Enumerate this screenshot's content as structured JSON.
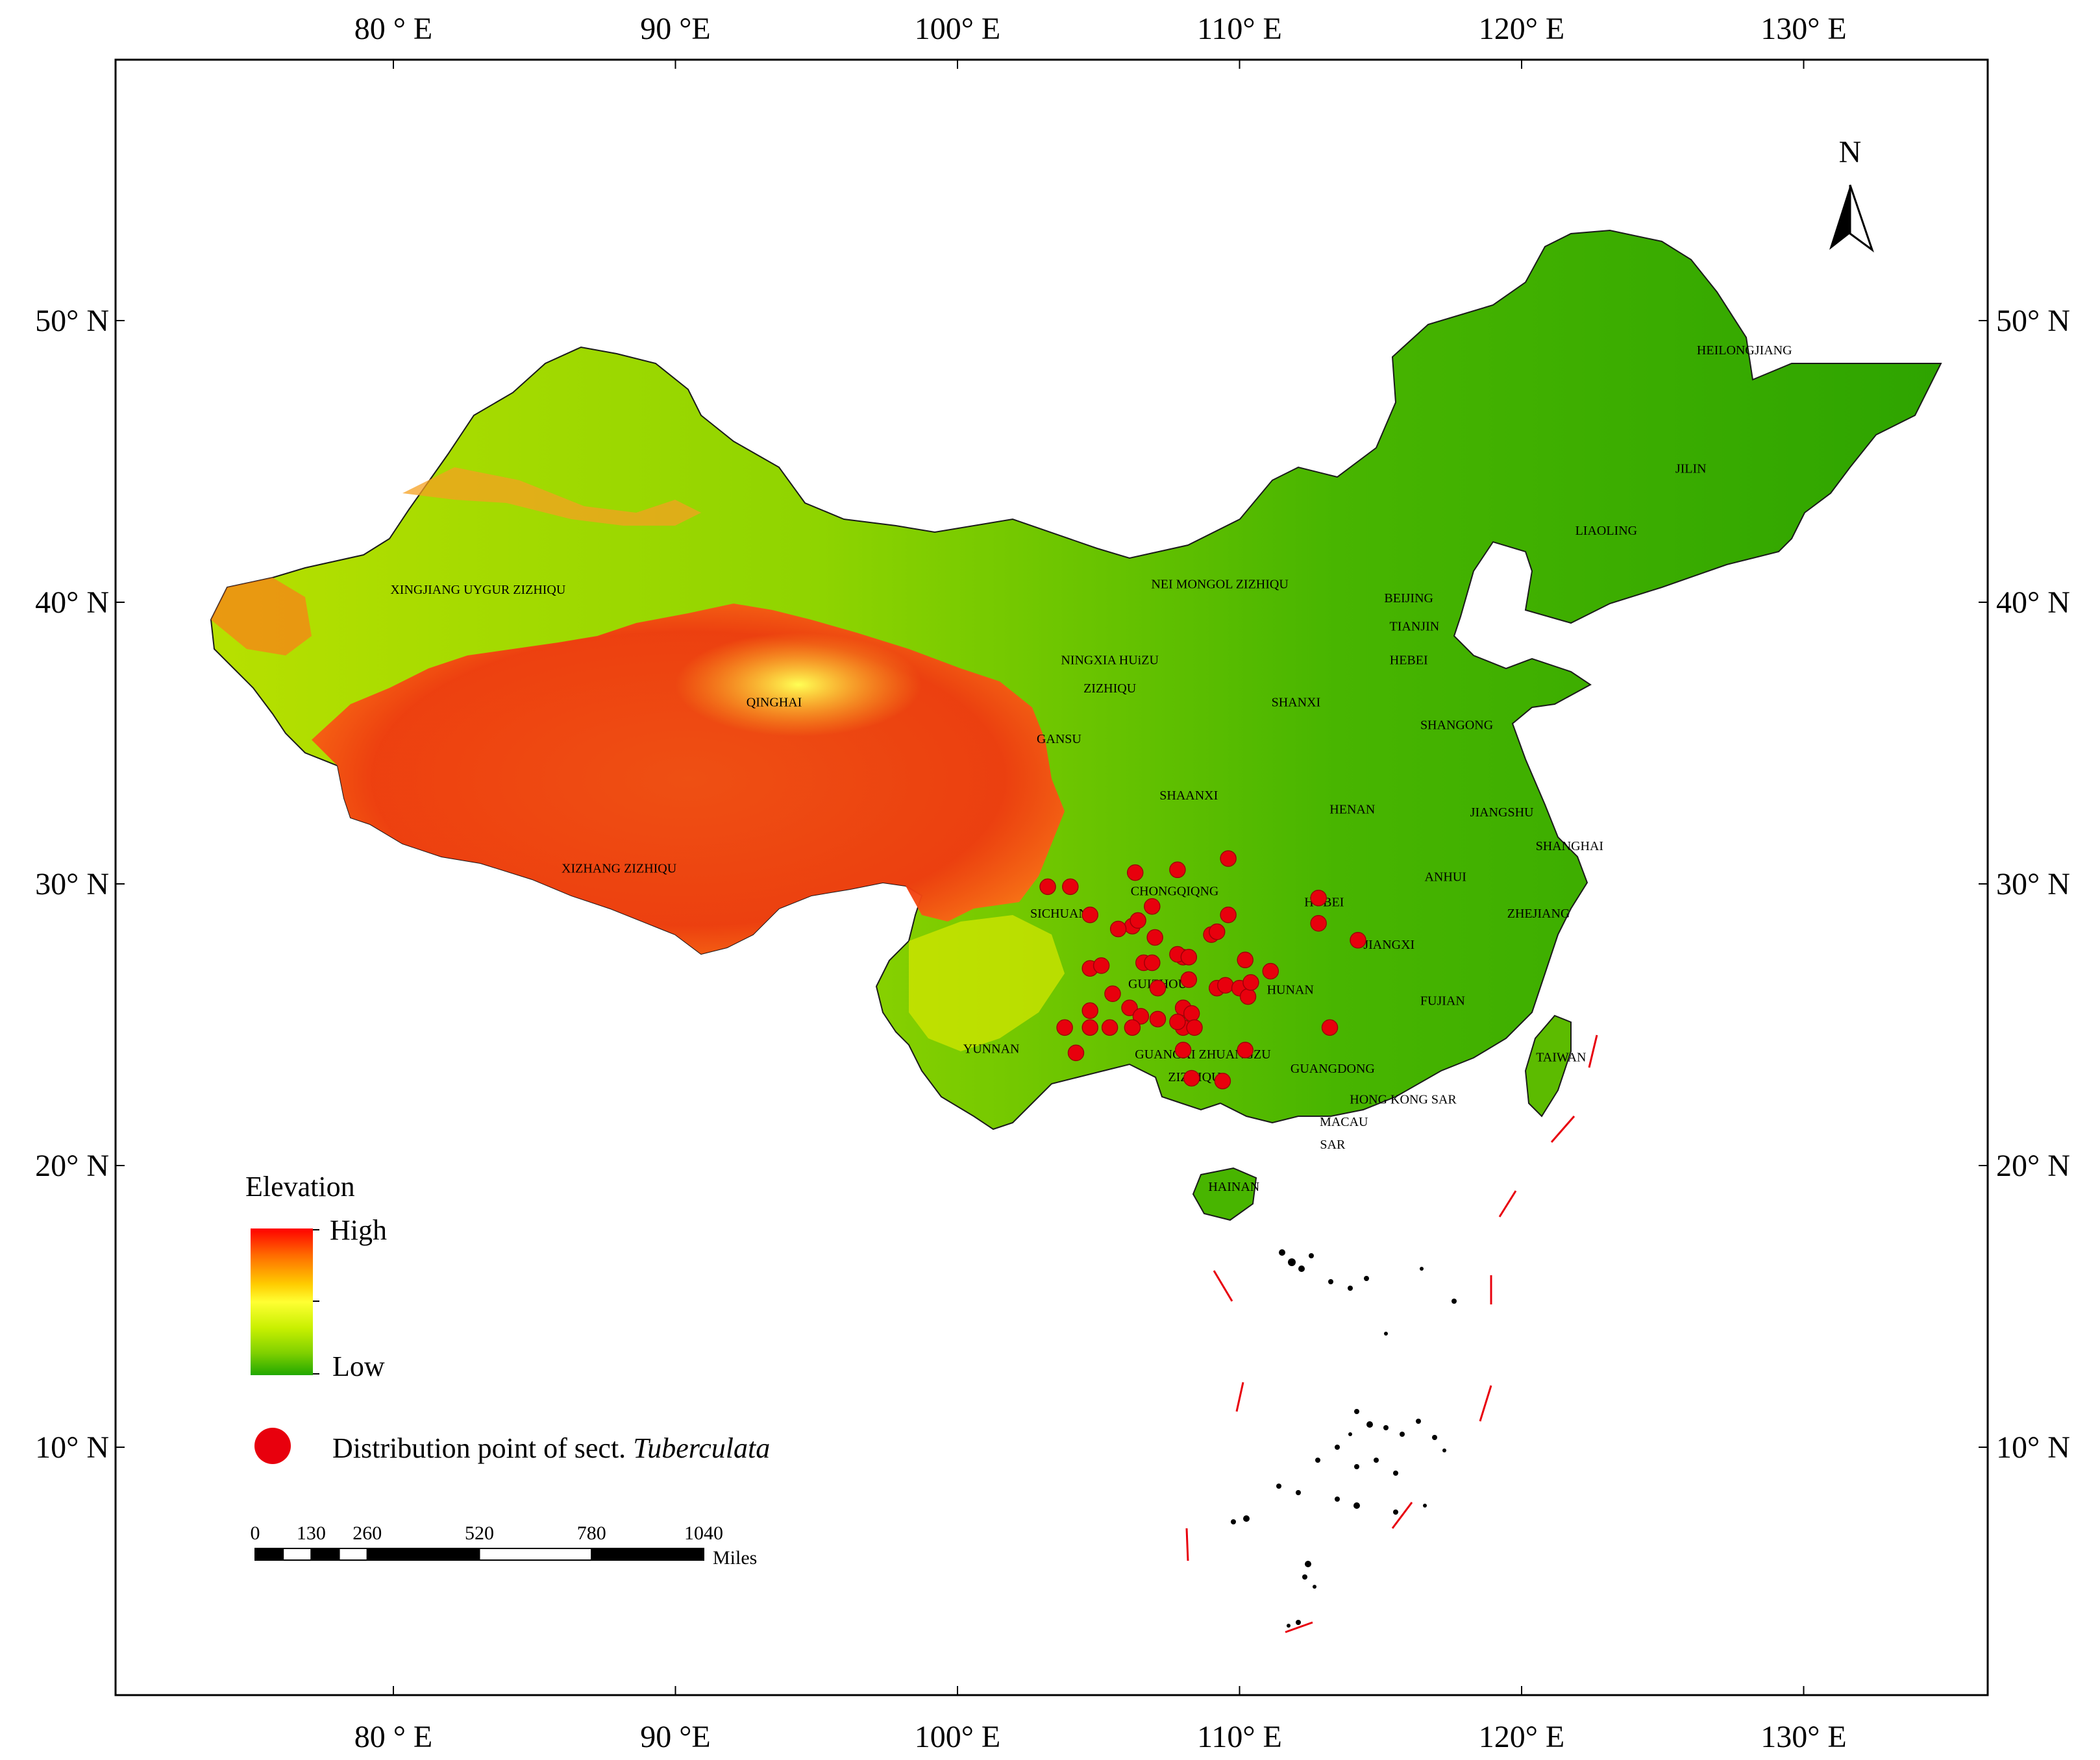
{
  "graticule": {
    "lon_labels": [
      "80 ° E",
      "90 °E",
      "100° E",
      "110° E",
      "120° E",
      "130° E"
    ],
    "lon_values": [
      80,
      90,
      100,
      110,
      120,
      130
    ],
    "lat_labels": [
      "50° N",
      "40° N",
      "30° N",
      "20° N",
      "10° N"
    ],
    "lat_values": [
      50,
      40,
      30,
      20,
      10
    ]
  },
  "north_arrow": {
    "label": "N",
    "icon": "north-arrow-icon"
  },
  "provinces": [
    {
      "name": "XINGJIANG UYGUR ZIZHIQU",
      "lon": 83.0,
      "lat": 40.3
    },
    {
      "name": "NEI MONGOL ZIZHIQU",
      "lon": 109.3,
      "lat": 40.5
    },
    {
      "name": "HEILONGJIANG",
      "lon": 127.9,
      "lat": 48.8
    },
    {
      "name": "JILIN",
      "lon": 126.0,
      "lat": 44.6
    },
    {
      "name": "LIAOLING",
      "lon": 123.0,
      "lat": 42.4
    },
    {
      "name": "BEIJING",
      "lon": 116.0,
      "lat": 40.0
    },
    {
      "name": "TIANJIN",
      "lon": 116.2,
      "lat": 39.0
    },
    {
      "name": "HEBEI",
      "lon": 116.0,
      "lat": 37.8
    },
    {
      "name": "NINGXIA HUiZU",
      "lon": 105.4,
      "lat": 37.8
    },
    {
      "name": "ZIZHIQU",
      "lon": 105.4,
      "lat": 36.8
    },
    {
      "name": "SHANXI",
      "lon": 112.0,
      "lat": 36.3
    },
    {
      "name": "QINGHAI",
      "lon": 93.5,
      "lat": 36.3
    },
    {
      "name": "SHANGONG",
      "lon": 117.7,
      "lat": 35.5
    },
    {
      "name": "GANSU",
      "lon": 103.6,
      "lat": 35.0
    },
    {
      "name": "SHAANXI",
      "lon": 108.2,
      "lat": 33.0
    },
    {
      "name": "HENAN",
      "lon": 114.0,
      "lat": 32.5
    },
    {
      "name": "JIANGSHU",
      "lon": 119.3,
      "lat": 32.4
    },
    {
      "name": "SHANGHAI",
      "lon": 121.7,
      "lat": 31.2
    },
    {
      "name": "XIZHANG ZIZHIQU",
      "lon": 88.0,
      "lat": 30.4
    },
    {
      "name": "CHONGQIQNG",
      "lon": 107.7,
      "lat": 29.6
    },
    {
      "name": "ANHUI",
      "lon": 117.3,
      "lat": 30.1
    },
    {
      "name": "HUBEI",
      "lon": 113.0,
      "lat": 29.2
    },
    {
      "name": "SICHUAN",
      "lon": 103.6,
      "lat": 28.8
    },
    {
      "name": "ZHEJIANG",
      "lon": 120.6,
      "lat": 28.8
    },
    {
      "name": "JIANGXI",
      "lon": 115.3,
      "lat": 27.7
    },
    {
      "name": "GUIZHOU",
      "lon": 107.1,
      "lat": 26.3
    },
    {
      "name": "HUNAN",
      "lon": 111.8,
      "lat": 26.1
    },
    {
      "name": "FUJIAN",
      "lon": 117.2,
      "lat": 25.7
    },
    {
      "name": "YUNNAN",
      "lon": 101.2,
      "lat": 24.0
    },
    {
      "name": "GUANGXI ZHUANGZU",
      "lon": 108.7,
      "lat": 23.8
    },
    {
      "name": "ZIZHIQU",
      "lon": 108.4,
      "lat": 23.0
    },
    {
      "name": "TAIWAN",
      "lon": 121.4,
      "lat": 23.7
    },
    {
      "name": "GUANGDONG",
      "lon": 113.3,
      "lat": 23.3
    },
    {
      "name": "HONG KONG SAR",
      "lon": 115.8,
      "lat": 22.2
    },
    {
      "name": "MACAU",
      "lon": 113.7,
      "lat": 21.4
    },
    {
      "name": "SAR",
      "lon": 113.3,
      "lat": 20.6
    },
    {
      "name": "HAINAN",
      "lon": 109.8,
      "lat": 19.1
    }
  ],
  "distribution_points": [
    [
      103.2,
      29.9
    ],
    [
      104.0,
      29.9
    ],
    [
      106.3,
      30.4
    ],
    [
      107.8,
      30.5
    ],
    [
      109.6,
      30.9
    ],
    [
      104.7,
      28.9
    ],
    [
      106.9,
      29.2
    ],
    [
      106.2,
      28.5
    ],
    [
      105.7,
      28.4
    ],
    [
      106.4,
      28.7
    ],
    [
      107.0,
      28.1
    ],
    [
      108.0,
      27.4
    ],
    [
      109.0,
      28.2
    ],
    [
      109.2,
      28.3
    ],
    [
      109.6,
      28.9
    ],
    [
      112.8,
      29.5
    ],
    [
      112.8,
      28.6
    ],
    [
      114.2,
      28.0
    ],
    [
      104.7,
      27.0
    ],
    [
      105.1,
      27.1
    ],
    [
      106.6,
      27.2
    ],
    [
      106.9,
      27.2
    ],
    [
      107.8,
      27.5
    ],
    [
      108.2,
      27.4
    ],
    [
      110.2,
      27.3
    ],
    [
      111.1,
      26.9
    ],
    [
      105.5,
      26.1
    ],
    [
      107.1,
      26.3
    ],
    [
      108.2,
      26.6
    ],
    [
      109.2,
      26.3
    ],
    [
      109.5,
      26.4
    ],
    [
      110.0,
      26.3
    ],
    [
      110.3,
      26.0
    ],
    [
      110.4,
      26.5
    ],
    [
      104.7,
      25.5
    ],
    [
      106.1,
      25.6
    ],
    [
      106.5,
      25.3
    ],
    [
      107.1,
      25.2
    ],
    [
      108.0,
      25.6
    ],
    [
      108.3,
      25.4
    ],
    [
      108.0,
      24.9
    ],
    [
      108.4,
      24.9
    ],
    [
      103.8,
      24.9
    ],
    [
      104.7,
      24.9
    ],
    [
      105.4,
      24.9
    ],
    [
      106.2,
      24.9
    ],
    [
      107.8,
      25.1
    ],
    [
      113.2,
      24.9
    ],
    [
      104.2,
      24.0
    ],
    [
      108.0,
      24.1
    ],
    [
      110.2,
      24.1
    ],
    [
      108.3,
      23.1
    ],
    [
      109.4,
      23.0
    ]
  ],
  "legend": {
    "title": "Elevation",
    "high_label": "High",
    "low_label": "Low",
    "distribution_label_prefix": "Distribution point of sect.",
    "distribution_label_taxon": "Tuberculata",
    "gradient_colors": [
      "#ff0000",
      "#ff6a00",
      "#ffcc00",
      "#ffff33",
      "#c8f000",
      "#7fd000",
      "#22a800"
    ]
  },
  "scale_bar": {
    "ticks": [
      "0",
      "130",
      "260",
      "520",
      "780",
      "1040"
    ],
    "tick_values": [
      0,
      130,
      260,
      520,
      780,
      1040
    ],
    "unit": "Miles"
  },
  "colors": {
    "point": "#e8000d",
    "boundary": "#e8000d",
    "lowland": "#2ea400",
    "plateau": "#f03010"
  }
}
